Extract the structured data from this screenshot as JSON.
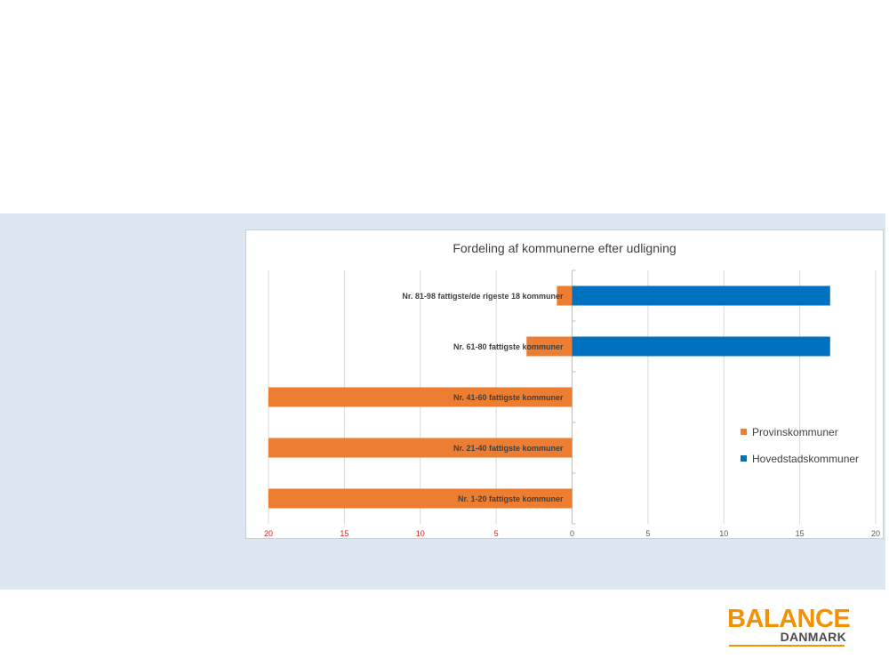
{
  "chart_data": {
    "type": "bar",
    "orientation": "horizontal",
    "title": "Fordeling af kommunerne  efter udligning",
    "categories": [
      "Nr. 81-98 fattigste/de rigeste 18 kommuner",
      "Nr. 61-80 fattigste kommuner",
      "Nr. 41-60 fattigste kommuner",
      "Nr. 21-40 fattigste kommuner",
      "Nr. 1-20 fattigste kommuner"
    ],
    "series": [
      {
        "name": "Provinskommuner",
        "color": "#ed7d31",
        "values": [
          1,
          3,
          20,
          20,
          20
        ],
        "direction": "left"
      },
      {
        "name": "Hovedstadskommuner",
        "color": "#0070c0",
        "values": [
          17,
          17,
          0,
          0,
          0
        ],
        "direction": "right"
      }
    ],
    "xlim": [
      -20,
      20
    ],
    "xticks": [
      {
        "value": -20,
        "label": "20",
        "color": "#e02020"
      },
      {
        "value": -15,
        "label": "15",
        "color": "#e02020"
      },
      {
        "value": -10,
        "label": "10",
        "color": "#e02020"
      },
      {
        "value": -5,
        "label": "5",
        "color": "#e02020"
      },
      {
        "value": 0,
        "label": "0",
        "color": "#595959"
      },
      {
        "value": 5,
        "label": "5",
        "color": "#595959"
      },
      {
        "value": 10,
        "label": "10",
        "color": "#595959"
      },
      {
        "value": 15,
        "label": "15",
        "color": "#595959"
      },
      {
        "value": 20,
        "label": "20",
        "color": "#595959"
      }
    ],
    "grid": true,
    "legend_position": "right"
  },
  "logo": {
    "main": "BALANCE",
    "sub": "DANMARK",
    "main_color": "#f39200",
    "rule_color": "#f39200"
  }
}
